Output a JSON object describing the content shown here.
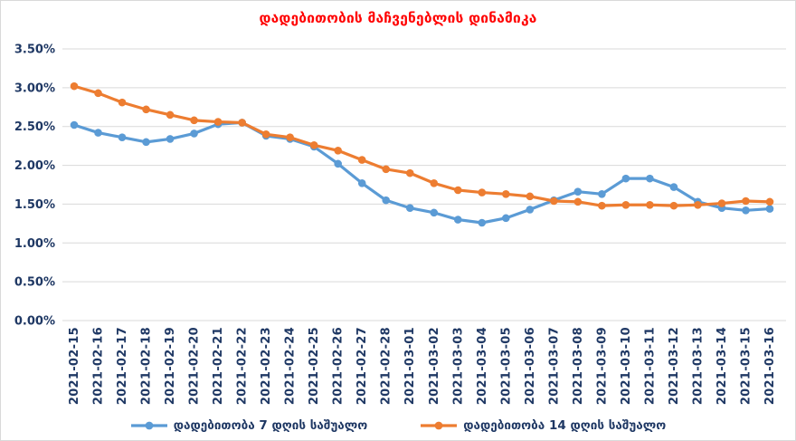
{
  "title": "დადებითობის მაჩვენებლის დინამიკა",
  "colors": {
    "title": "#ff0000",
    "axis_text": "#1f3864",
    "gridline": "#d9d9d9",
    "series_7day": "#5b9bd5",
    "series_14day": "#ed7d31",
    "background": "#ffffff",
    "border": "#d9d9d9"
  },
  "chart_data": {
    "type": "line",
    "title": "დადებითობის მაჩვენებლის დინამიკა",
    "xlabel": "",
    "ylabel": "",
    "ylim": [
      0,
      3.5
    ],
    "grid": "horizontal",
    "legend_position": "bottom",
    "yticks": [
      {
        "value": 0.0,
        "label": "0.00%"
      },
      {
        "value": 0.5,
        "label": "0.50%"
      },
      {
        "value": 1.0,
        "label": "1.00%"
      },
      {
        "value": 1.5,
        "label": "1.50%"
      },
      {
        "value": 2.0,
        "label": "2.00%"
      },
      {
        "value": 2.5,
        "label": "2.50%"
      },
      {
        "value": 3.0,
        "label": "3.00%"
      },
      {
        "value": 3.5,
        "label": "3.50%"
      }
    ],
    "x": [
      "2021-02-15",
      "2021-02-16",
      "2021-02-17",
      "2021-02-18",
      "2021-02-19",
      "2021-02-20",
      "2021-02-21",
      "2021-02-22",
      "2021-02-23",
      "2021-02-24",
      "2021-02-25",
      "2021-02-26",
      "2021-02-27",
      "2021-02-28",
      "2021-03-01",
      "2021-03-02",
      "2021-03-03",
      "2021-03-04",
      "2021-03-05",
      "2021-03-06",
      "2021-03-07",
      "2021-03-08",
      "2021-03-09",
      "2021-03-10",
      "2021-03-11",
      "2021-03-12",
      "2021-03-13",
      "2021-03-14",
      "2021-03-15",
      "2021-03-16"
    ],
    "series": [
      {
        "name": "დადებითობა 7 დღის საშუალო",
        "color": "#5b9bd5",
        "values": [
          2.52,
          2.42,
          2.36,
          2.3,
          2.34,
          2.41,
          2.53,
          2.55,
          2.38,
          2.34,
          2.24,
          2.02,
          1.77,
          1.55,
          1.45,
          1.39,
          1.3,
          1.26,
          1.32,
          1.43,
          1.55,
          1.66,
          1.63,
          1.83,
          1.83,
          1.72,
          1.53,
          1.45,
          1.42,
          1.44
        ]
      },
      {
        "name": "დადებითობა 14 დღის საშუალო",
        "color": "#ed7d31",
        "values": [
          3.02,
          2.93,
          2.81,
          2.72,
          2.65,
          2.58,
          2.56,
          2.55,
          2.4,
          2.36,
          2.26,
          2.19,
          2.07,
          1.95,
          1.9,
          1.77,
          1.68,
          1.65,
          1.63,
          1.6,
          1.54,
          1.53,
          1.48,
          1.49,
          1.49,
          1.48,
          1.49,
          1.51,
          1.54,
          1.53
        ]
      }
    ]
  }
}
